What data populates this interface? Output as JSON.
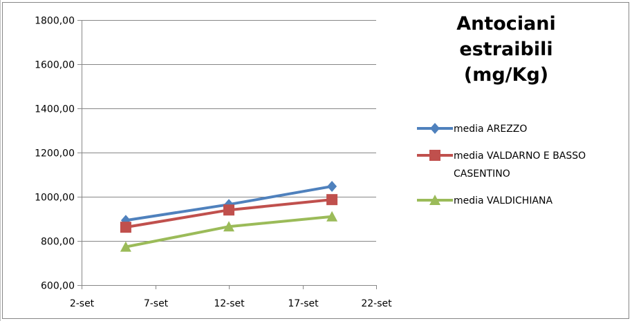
{
  "chart_data": {
    "type": "line",
    "title_lines": [
      "Antociani",
      "estraibili",
      "(mg/Kg)"
    ],
    "xlabel": "",
    "ylabel": "",
    "x_ticks": [
      "2-set",
      "7-set",
      "12-set",
      "17-set",
      "22-set"
    ],
    "x_tick_values": [
      2,
      7,
      12,
      17,
      22
    ],
    "xlim": [
      2,
      22
    ],
    "y_ticks": [
      "600,00",
      "800,00",
      "1000,00",
      "1200,00",
      "1400,00",
      "1600,00",
      "1800,00"
    ],
    "y_tick_values": [
      600,
      800,
      1000,
      1200,
      1400,
      1600,
      1800
    ],
    "ylim": [
      600,
      1800
    ],
    "grid": "horizontal",
    "legend_position": "right",
    "x": [
      5,
      12,
      19
    ],
    "series": [
      {
        "name": "media AREZZO",
        "legend_lines": [
          "media AREZZO"
        ],
        "values": [
          893,
          965,
          1047
        ],
        "color": "#4F81BD",
        "marker": "diamond"
      },
      {
        "name": "media VALDARNO E BASSO CASENTINO",
        "legend_lines": [
          "media VALDARNO E BASSO",
          "CASENTINO"
        ],
        "values": [
          862,
          940,
          987
        ],
        "color": "#C0504D",
        "marker": "square"
      },
      {
        "name": "media VALDICHIANA",
        "legend_lines": [
          "media VALDICHIANA"
        ],
        "values": [
          773,
          865,
          910
        ],
        "color": "#9BBB59",
        "marker": "triangle"
      }
    ]
  }
}
